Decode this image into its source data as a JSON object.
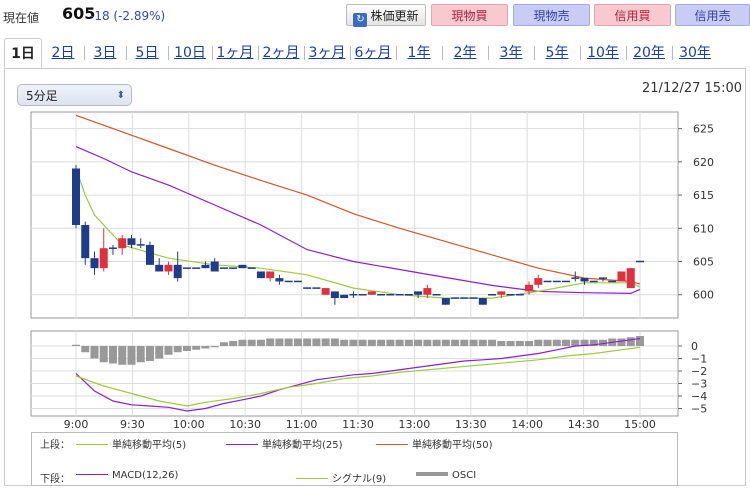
{
  "header": {
    "price_label": "現在値",
    "price_value": "605",
    "price_change": "-18 (-2.89%)",
    "refresh_label": "株価更新",
    "buttons": [
      "現物買",
      "現物売",
      "信用買",
      "信用売"
    ],
    "colors": {
      "buy": "#f8c9cf",
      "sell": "#c9cdf6",
      "change": "#2b4fa8"
    }
  },
  "tabs": [
    "1日",
    "2日",
    "3日",
    "5日",
    "10日",
    "1ヶ月",
    "2ヶ月",
    "3ヶ月",
    "6ヶ月",
    "1年",
    "2年",
    "3年",
    "5年",
    "10年",
    "20年",
    "30年"
  ],
  "active_tab": "1日",
  "interval_select": "5分足",
  "timestamp": "21/12/27 15:00",
  "legend": {
    "upper_label": "上段：",
    "upper": [
      "単純移動平均(5)",
      "単純移動平均(25)",
      "単純移動平均(50)"
    ],
    "lower_label": "下段：",
    "lower": [
      "MACD(12,26)",
      "シグナル(9)",
      "OSCI"
    ]
  },
  "chart_data": {
    "type": "candlestick",
    "x_labels": [
      "9:00",
      "9:30",
      "10:00",
      "10:30",
      "11:00",
      "11:30",
      "13:00",
      "13:30",
      "14:00",
      "14:30",
      "15:00"
    ],
    "price_axis": {
      "ticks": [
        600,
        605,
        610,
        615,
        620,
        625
      ],
      "range": [
        596.5,
        627.5
      ]
    },
    "macd_axis": {
      "ticks": [
        0,
        -1,
        -2,
        -3,
        -4,
        -5
      ],
      "range": [
        -5.6,
        1.2
      ]
    },
    "colors": {
      "up": "#e0303e",
      "down": "#1f3c8c",
      "sma5": "#9ccb3b",
      "sma25": "#8b1fd6",
      "sma50": "#d2572b",
      "macd": "#8b1fd6",
      "signal": "#9ccb3b",
      "osci": "#999999"
    },
    "candles": [
      [
        619,
        619.5,
        610,
        610.5
      ],
      [
        610.5,
        611,
        604.5,
        605.5
      ],
      [
        605.5,
        606.5,
        603,
        604
      ],
      [
        604,
        610,
        603.5,
        607
      ],
      [
        607,
        607.5,
        606,
        607
      ],
      [
        607,
        609,
        606,
        608.5
      ],
      [
        608.5,
        609,
        607,
        607.5
      ],
      [
        607.5,
        608.5,
        607,
        607.5
      ],
      [
        607.5,
        608,
        604.5,
        604.5
      ],
      [
        604.5,
        605.5,
        603.5,
        603.5
      ],
      [
        603.5,
        605,
        603,
        604.5
      ],
      [
        604.5,
        606.5,
        602,
        602.5
      ],
      [
        604,
        604,
        604,
        604
      ],
      [
        604,
        604,
        604,
        604
      ],
      [
        604.5,
        605,
        604,
        604
      ],
      [
        605,
        605.5,
        603.5,
        603.5
      ],
      [
        604,
        604,
        604,
        604
      ],
      [
        604,
        604,
        604,
        604
      ],
      [
        604.5,
        604.5,
        604,
        604
      ],
      [
        604,
        604,
        604,
        604
      ],
      [
        603.5,
        603.5,
        602.5,
        602.5
      ],
      [
        602.5,
        603.5,
        602,
        603.5
      ],
      [
        602.5,
        603,
        601.5,
        602
      ],
      [
        602,
        602,
        602,
        602
      ],
      [
        602,
        602,
        602,
        602
      ],
      [
        601,
        601,
        601,
        601
      ],
      [
        601,
        601,
        601,
        601
      ],
      [
        600,
        601,
        600,
        601
      ],
      [
        600.5,
        600.5,
        598.5,
        599.5
      ],
      [
        600,
        600,
        599.5,
        599.5
      ],
      [
        600,
        600.5,
        599.5,
        600
      ],
      [
        600,
        600,
        600,
        600
      ],
      [
        600,
        600.5,
        600,
        600.5
      ],
      [
        600,
        600,
        600,
        600
      ],
      [
        600,
        600,
        600,
        600
      ],
      [
        600,
        600,
        600,
        600
      ],
      [
        600,
        600,
        600,
        600
      ],
      [
        600.5,
        600.5,
        599.5,
        600
      ],
      [
        600,
        601.5,
        599.5,
        601
      ],
      [
        600,
        600,
        600,
        600
      ],
      [
        599.5,
        599.5,
        598.5,
        598.5
      ],
      [
        599.5,
        599.5,
        599.5,
        599.5
      ],
      [
        599.5,
        599.5,
        599.5,
        599.5
      ],
      [
        599.5,
        599.5,
        599.5,
        599.5
      ],
      [
        599.5,
        599.5,
        598.5,
        598.5
      ],
      [
        600,
        600,
        600,
        600
      ],
      [
        600,
        600.5,
        599.5,
        600.5
      ],
      [
        600,
        600,
        600,
        600
      ],
      [
        600,
        600,
        600,
        600
      ],
      [
        600.5,
        602,
        600,
        601.5
      ],
      [
        601.5,
        603,
        601,
        602.5
      ],
      [
        602,
        602,
        602,
        602
      ],
      [
        602,
        602,
        602,
        602
      ],
      [
        602,
        602,
        602,
        602
      ],
      [
        602.5,
        603.5,
        602,
        602.5
      ],
      [
        602.5,
        602.5,
        601.5,
        602
      ],
      [
        602,
        602,
        602,
        602
      ],
      [
        602.5,
        602.5,
        602,
        602.5
      ],
      [
        602,
        602,
        602,
        602
      ],
      [
        602,
        603.5,
        602,
        603.5
      ],
      [
        601,
        604,
        601,
        604
      ],
      [
        605,
        605,
        605,
        605
      ]
    ],
    "sma5": [
      [
        0,
        619
      ],
      [
        1,
        615
      ],
      [
        2,
        612
      ],
      [
        5,
        607.5
      ],
      [
        10,
        605.5
      ],
      [
        15,
        604.5
      ],
      [
        20,
        604
      ],
      [
        25,
        603
      ],
      [
        30,
        601
      ],
      [
        35,
        600
      ],
      [
        40,
        599.5
      ],
      [
        45,
        599.5
      ],
      [
        50,
        600.5
      ],
      [
        55,
        601.8
      ],
      [
        60,
        601.8
      ],
      [
        61,
        601.2
      ]
    ],
    "sma25": [
      [
        0,
        622.3
      ],
      [
        3,
        620.5
      ],
      [
        6,
        618.5
      ],
      [
        10,
        616.5
      ],
      [
        15,
        613.5
      ],
      [
        20,
        610.5
      ],
      [
        25,
        606.8
      ],
      [
        30,
        605
      ],
      [
        35,
        603.8
      ],
      [
        40,
        602.6
      ],
      [
        45,
        601.4
      ],
      [
        50,
        600.5
      ],
      [
        55,
        600.3
      ],
      [
        60,
        600.2
      ],
      [
        61,
        600.8
      ]
    ],
    "sma50": [
      [
        0,
        627
      ],
      [
        5,
        624.5
      ],
      [
        10,
        622
      ],
      [
        15,
        619.5
      ],
      [
        20,
        617.2
      ],
      [
        25,
        615
      ],
      [
        30,
        612.2
      ],
      [
        35,
        610
      ],
      [
        40,
        608
      ],
      [
        45,
        606
      ],
      [
        50,
        604
      ],
      [
        55,
        602.5
      ],
      [
        60,
        602
      ],
      [
        61,
        601.6
      ]
    ],
    "macd": [
      [
        0,
        -2.2
      ],
      [
        2,
        -3.6
      ],
      [
        4,
        -4.4
      ],
      [
        6,
        -4.7
      ],
      [
        8,
        -4.8
      ],
      [
        10,
        -4.9
      ],
      [
        12,
        -5.2
      ],
      [
        14,
        -5.0
      ],
      [
        16,
        -4.6
      ],
      [
        18,
        -4.3
      ],
      [
        20,
        -4.0
      ],
      [
        22,
        -3.5
      ],
      [
        24,
        -3.1
      ],
      [
        26,
        -2.7
      ],
      [
        28,
        -2.5
      ],
      [
        30,
        -2.3
      ],
      [
        32,
        -2.2
      ],
      [
        34,
        -2.0
      ],
      [
        36,
        -1.8
      ],
      [
        38,
        -1.6
      ],
      [
        40,
        -1.4
      ],
      [
        42,
        -1.2
      ],
      [
        44,
        -1.1
      ],
      [
        46,
        -1.0
      ],
      [
        48,
        -0.8
      ],
      [
        50,
        -0.6
      ],
      [
        52,
        -0.3
      ],
      [
        54,
        0.0
      ],
      [
        56,
        0.1
      ],
      [
        58,
        0.3
      ],
      [
        60,
        0.5
      ],
      [
        61,
        0.6
      ]
    ],
    "signal": [
      [
        0,
        -2.4
      ],
      [
        3,
        -3.2
      ],
      [
        6,
        -3.8
      ],
      [
        9,
        -4.4
      ],
      [
        12,
        -4.8
      ],
      [
        14,
        -4.5
      ],
      [
        17,
        -4.2
      ],
      [
        20,
        -3.8
      ],
      [
        23,
        -3.3
      ],
      [
        26,
        -3.0
      ],
      [
        29,
        -2.6
      ],
      [
        32,
        -2.4
      ],
      [
        35,
        -2.1
      ],
      [
        38,
        -1.9
      ],
      [
        41,
        -1.7
      ],
      [
        44,
        -1.5
      ],
      [
        47,
        -1.3
      ],
      [
        50,
        -1.1
      ],
      [
        53,
        -0.8
      ],
      [
        56,
        -0.6
      ],
      [
        59,
        -0.3
      ],
      [
        61,
        -0.1
      ]
    ],
    "osci": [
      0.1,
      -0.5,
      -1.0,
      -1.3,
      -1.4,
      -1.5,
      -1.5,
      -1.3,
      -1.2,
      -1.0,
      -0.7,
      -0.5,
      -0.4,
      -0.3,
      -0.2,
      -0.1,
      0.3,
      0.4,
      0.5,
      0.5,
      0.5,
      0.6,
      0.6,
      0.6,
      0.6,
      0.6,
      0.6,
      0.6,
      0.6,
      0.5,
      0.5,
      0.5,
      0.5,
      0.5,
      0.5,
      0.5,
      0.5,
      0.5,
      0.5,
      0.5,
      0.5,
      0.5,
      0.5,
      0.5,
      0.5,
      0.5,
      0.4,
      0.4,
      0.4,
      0.4,
      0.5,
      0.5,
      0.5,
      0.5,
      0.5,
      0.5,
      0.5,
      0.5,
      0.6,
      0.6,
      0.7,
      0.8
    ]
  }
}
